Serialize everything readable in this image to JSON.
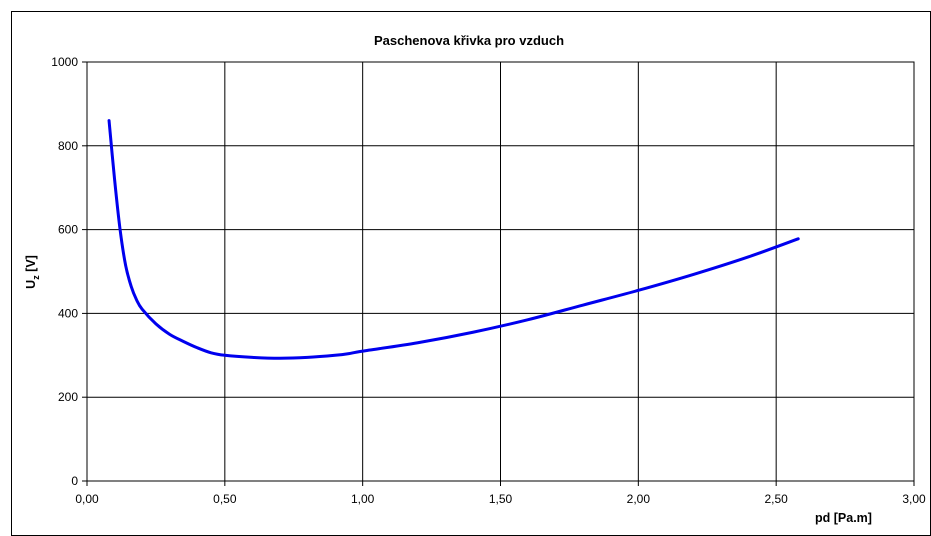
{
  "chart_data": {
    "type": "line",
    "title": "Paschenova křivka pro vzduch",
    "xlabel": "pd [Pa.m]",
    "ylabel": {
      "main": "U",
      "subscript": "z",
      "suffix": " [V]"
    },
    "xlim": [
      0,
      3
    ],
    "ylim": [
      0,
      1000
    ],
    "x_ticks": [
      0,
      0.5,
      1.0,
      1.5,
      2.0,
      2.5,
      3.0
    ],
    "x_tick_labels": [
      "0,00",
      "0,50",
      "1,00",
      "1,50",
      "2,00",
      "2,50",
      "3,00"
    ],
    "y_ticks": [
      0,
      200,
      400,
      600,
      800,
      1000
    ],
    "y_tick_labels": [
      "0",
      "200",
      "400",
      "600",
      "800",
      "1000"
    ],
    "grid": true,
    "legend": "none",
    "series": [
      {
        "color": "#0000ee",
        "x": [
          0.08,
          0.1,
          0.12,
          0.14,
          0.16,
          0.18,
          0.2,
          0.25,
          0.3,
          0.35,
          0.4,
          0.45,
          0.5,
          0.6,
          0.7,
          0.8,
          0.9,
          0.95,
          1.0,
          1.2,
          1.4,
          1.6,
          1.8,
          2.0,
          2.2,
          2.4,
          2.58
        ],
        "y": [
          860,
          720,
          600,
          515,
          465,
          432,
          410,
          375,
          350,
          333,
          318,
          306,
          300,
          295,
          293,
          295,
          300,
          304,
          310,
          330,
          355,
          385,
          420,
          455,
          493,
          535,
          578
        ]
      }
    ]
  },
  "colors": {
    "background": "#ffffff",
    "grid": "#000000",
    "line": "#0000ee"
  }
}
